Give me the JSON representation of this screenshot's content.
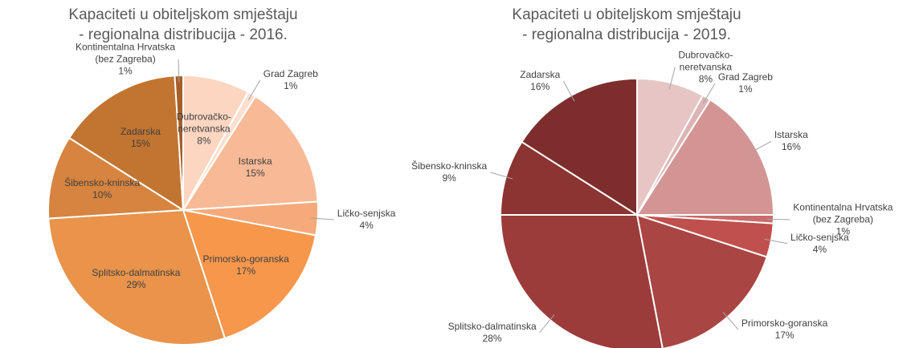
{
  "chart_data": [
    {
      "type": "pie",
      "title": "Kapaciteti u obiteljskom smještaju\n- regionalna distribucija - 2016.",
      "categories": [
        "Dubrovačko-\nneretvanska",
        "Grad Zagreb",
        "Istarska",
        "Ličko-senjska",
        "Primorsko-goranska",
        "Splitsko-dalmatinska",
        "Šibensko-kninska",
        "Zadarska",
        "Kontinentalna Hrvatska\n(bez Zagreba)"
      ],
      "values": [
        8,
        1,
        15,
        4,
        17,
        29,
        10,
        15,
        1
      ],
      "value_labels": [
        "8%",
        "1%",
        "15%",
        "4%",
        "17%",
        "29%",
        "10%",
        "15%",
        "1%"
      ],
      "colors": [
        "#fcd6c1",
        "#fbe0d0",
        "#f8ba96",
        "#f6a97a",
        "#f7974c",
        "#e9934b",
        "#d6843f",
        "#c27431",
        "#a65e26"
      ]
    },
    {
      "type": "pie",
      "title": "Kapaciteti u obiteljskom smještaju\n- regionalna distribucija - 2019.",
      "categories": [
        "Dubrovačko-\nneretvanska",
        "Grad Zagreb",
        "Istarska",
        "Kontinentalna Hrvatska\n(bez Zagreba)",
        "Ličko-senjska",
        "Primorsko-goranska",
        "Splitsko-dalmatinska",
        "Šibensko-kninska",
        "Zadarska"
      ],
      "values": [
        8,
        1,
        16,
        1,
        4,
        17,
        28,
        9,
        16
      ],
      "value_labels": [
        "8%",
        "1%",
        "16%",
        "1%",
        "4%",
        "17%",
        "28%",
        "9%",
        "16%"
      ],
      "colors": [
        "#e7c5c5",
        "#ddb4b4",
        "#d39594",
        "#c96c6b",
        "#c0504d",
        "#a94543",
        "#9b3c3a",
        "#8b3431",
        "#7d2e2c"
      ]
    }
  ]
}
